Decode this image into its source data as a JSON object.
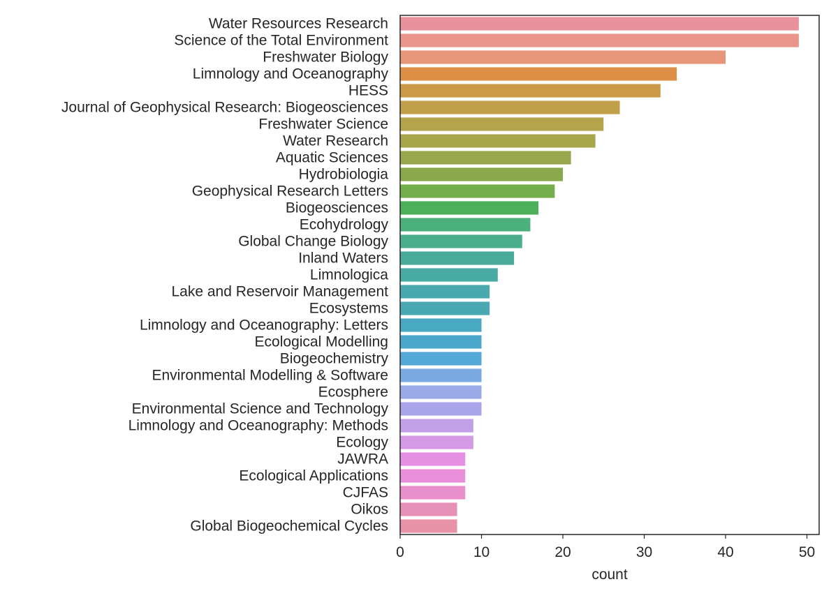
{
  "chart_data": {
    "type": "bar",
    "orientation": "horizontal",
    "title": "",
    "xlabel": "count",
    "ylabel": "",
    "xlim": [
      0,
      51.5
    ],
    "xticks": [
      0,
      10,
      20,
      30,
      40,
      50
    ],
    "xtick_labels": [
      "0",
      "10",
      "20",
      "30",
      "40",
      "50"
    ],
    "grid": false,
    "legend": "none",
    "categories": [
      "Water Resources Research",
      "Science of the Total Environment",
      "Freshwater Biology",
      "Limnology and Oceanography",
      "HESS",
      "Journal of Geophysical Research: Biogeosciences",
      "Freshwater Science",
      "Water Research",
      "Aquatic Sciences",
      "Hydrobiologia",
      "Geophysical Research Letters",
      "Biogeosciences",
      "Ecohydrology",
      "Global Change Biology",
      "Inland Waters",
      "Limnologica",
      "Lake and Reservoir Management",
      "Ecosystems",
      "Limnology and Oceanography: Letters",
      "Ecological Modelling",
      "Biogeochemistry",
      "Environmental Modelling & Software",
      "Ecosphere",
      "Environmental Science and Technology",
      "Limnology and Oceanography: Methods",
      "Ecology",
      "JAWRA",
      "Ecological Applications",
      "CJFAS",
      "Oikos",
      "Global Biogeochemical Cycles"
    ],
    "values": [
      49,
      49,
      40,
      34,
      32,
      27,
      25,
      24,
      21,
      20,
      19,
      17,
      16,
      15,
      14,
      12,
      11,
      11,
      10,
      10,
      10,
      10,
      10,
      10,
      9,
      9,
      8,
      8,
      8,
      7,
      7
    ],
    "colors": [
      "#e8919b",
      "#e9958b",
      "#e8967a",
      "#dc8f45",
      "#cb9a49",
      "#c0a04a",
      "#b4a44b",
      "#a6a64b",
      "#99a84c",
      "#8aa94c",
      "#74ad4c",
      "#4cb05a",
      "#4bb07c",
      "#4aad8c",
      "#49ab98",
      "#4aaba4",
      "#4aa9ae",
      "#4aa8b3",
      "#4aa9c2",
      "#4ba8cc",
      "#55a9d9",
      "#7aa9e2",
      "#9aaae6",
      "#aaa4e8",
      "#c39fe8",
      "#d49ae6",
      "#e690e4",
      "#e98fd9",
      "#e98fcb",
      "#e891b8",
      "#e892a8"
    ]
  }
}
